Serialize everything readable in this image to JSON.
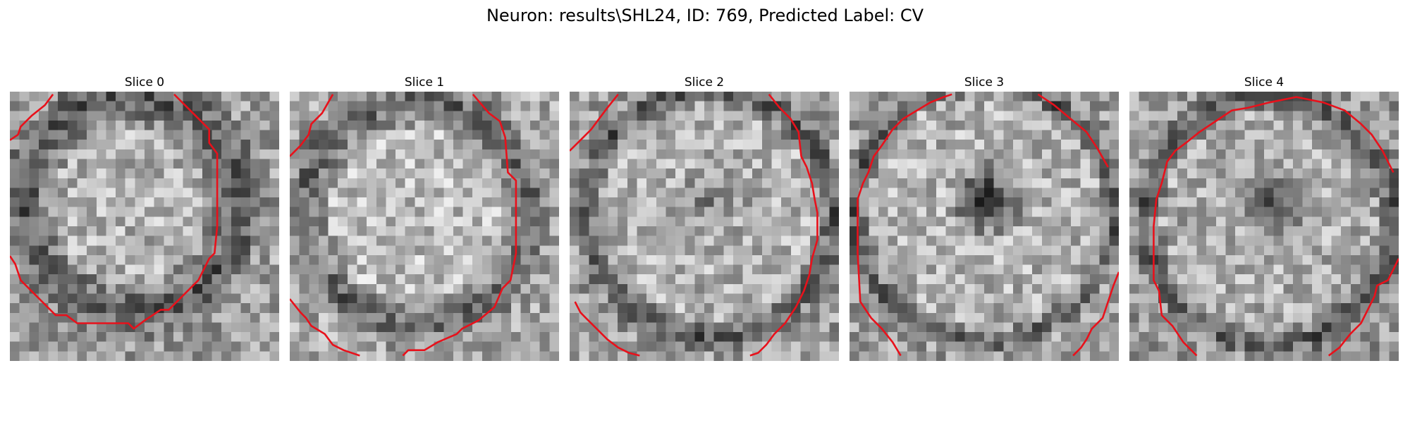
{
  "figure": {
    "suptitle": "Neuron: results\\SHL24, ID: 769, Predicted Label: CV",
    "colormap": "gray",
    "contour_color": "#e8111b",
    "grid_size": 28
  },
  "slices": [
    {
      "title": "Slice 0"
    },
    {
      "title": "Slice 1"
    },
    {
      "title": "Slice 2"
    },
    {
      "title": "Slice 3"
    },
    {
      "title": "Slice 4"
    }
  ]
}
